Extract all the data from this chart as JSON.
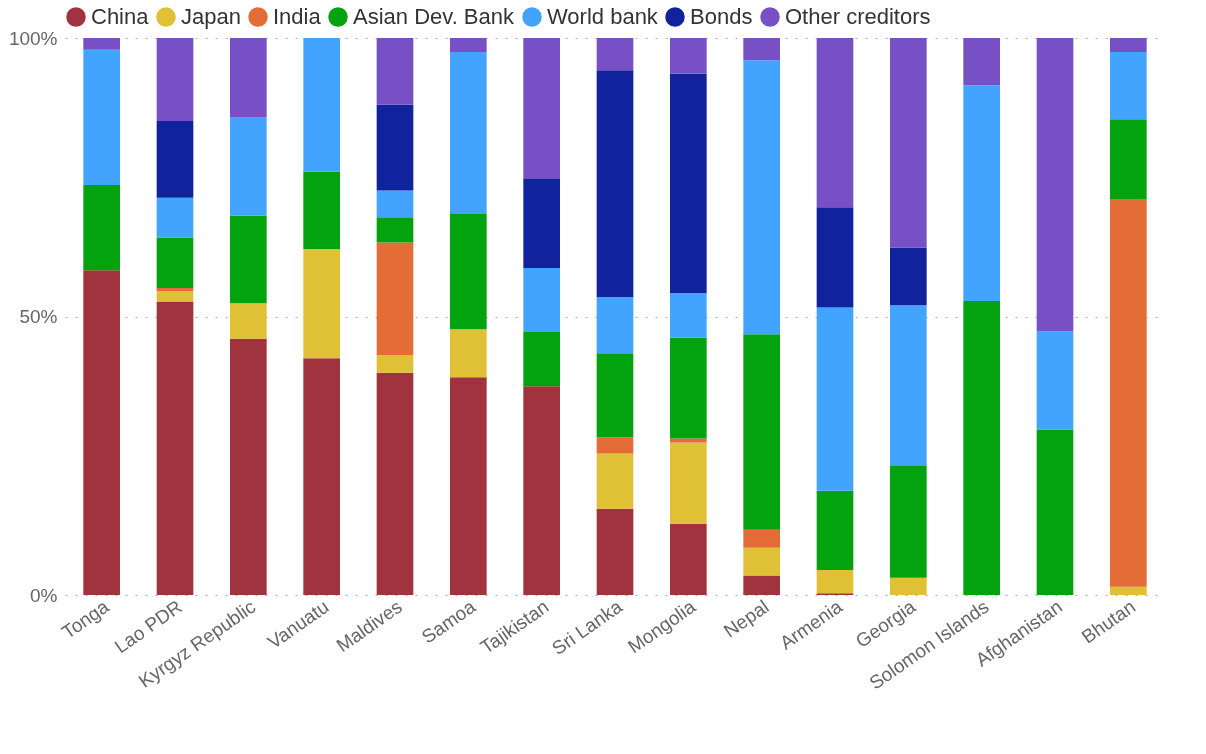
{
  "chart_data": {
    "type": "bar",
    "stacked": true,
    "categories": [
      "Tonga",
      "Lao PDR",
      "Kyrgyz Republic",
      "Vanuatu",
      "Maldives",
      "Samoa",
      "Tajikistan",
      "Sri Lanka",
      "Mongolia",
      "Nepal",
      "Armenia",
      "Georgia",
      "Solomon Islands",
      "Afghanistan",
      "Bhutan"
    ],
    "series": [
      {
        "name": "China",
        "color": "#a0333d",
        "values": [
          58.3,
          52.7,
          46.0,
          42.5,
          39.9,
          39.1,
          37.5,
          15.5,
          12.8,
          3.5,
          0.3,
          0,
          0,
          0,
          0
        ]
      },
      {
        "name": "Japan",
        "color": "#e0c035",
        "values": [
          0,
          1.9,
          6.4,
          19.6,
          3.2,
          8.6,
          0,
          9.9,
          14.6,
          5.0,
          4.2,
          3.1,
          0,
          0,
          1.5
        ]
      },
      {
        "name": "India",
        "color": "#e46c37",
        "values": [
          0,
          0.5,
          0,
          0,
          20.2,
          0,
          0,
          2.9,
          0.7,
          3.2,
          0,
          0,
          0,
          0,
          69.6
        ]
      },
      {
        "name": "Asian Dev. Bank",
        "color": "#03a30f",
        "values": [
          15.3,
          9.1,
          15.7,
          13.9,
          4.5,
          20.7,
          9.7,
          15.1,
          18.1,
          35.1,
          14.2,
          20.2,
          52.8,
          29.7,
          14.3
        ]
      },
      {
        "name": "World bank",
        "color": "#42a4ff",
        "values": [
          24.3,
          7.1,
          17.7,
          24.0,
          4.8,
          29.1,
          11.5,
          10.1,
          8.0,
          49.2,
          32.9,
          28.7,
          38.7,
          17.6,
          12.1
        ]
      },
      {
        "name": "Bonds",
        "color": "#10239c",
        "values": [
          0,
          13.8,
          0,
          0,
          15.4,
          0,
          16.1,
          40.7,
          39.4,
          0,
          18.0,
          10.4,
          0,
          0,
          0
        ]
      },
      {
        "name": "Other creditors",
        "color": "#7650c4",
        "values": [
          2.1,
          14.9,
          14.2,
          0,
          12.0,
          2.5,
          25.2,
          5.8,
          6.4,
          4.0,
          30.4,
          37.6,
          8.5,
          52.7,
          2.5
        ]
      }
    ],
    "ylim": [
      0,
      100
    ],
    "yticks": [
      {
        "value": 0,
        "label": "0%"
      },
      {
        "value": 50,
        "label": "50%"
      },
      {
        "value": 100,
        "label": "100%"
      }
    ],
    "grid": "y",
    "legend": "top left"
  }
}
